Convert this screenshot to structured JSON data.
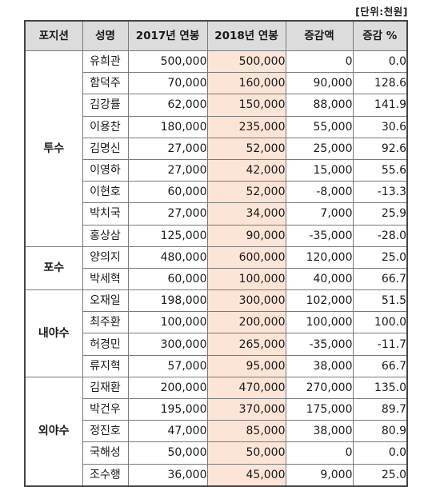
{
  "unit_label": "[단위:천원]",
  "headers": [
    "포지션",
    "성명",
    "2017년 연봉",
    "2018년 연봉",
    "증감액",
    "증감 %"
  ],
  "groups": [
    {
      "position": "투수",
      "rows": [
        {
          "name": "유희관",
          "y2017": "500,000",
          "y2018": "500,000",
          "diff": "0",
          "pct": "0.0"
        },
        {
          "name": "함덕주",
          "y2017": "70,000",
          "y2018": "160,000",
          "diff": "90,000",
          "pct": "128.6"
        },
        {
          "name": "김강률",
          "y2017": "62,000",
          "y2018": "150,000",
          "diff": "88,000",
          "pct": "141.9"
        },
        {
          "name": "이용찬",
          "y2017": "180,000",
          "y2018": "235,000",
          "diff": "55,000",
          "pct": "30.6"
        },
        {
          "name": "김명신",
          "y2017": "27,000",
          "y2018": "52,000",
          "diff": "25,000",
          "pct": "92.6"
        },
        {
          "name": "이영하",
          "y2017": "27,000",
          "y2018": "42,000",
          "diff": "15,000",
          "pct": "55.6"
        },
        {
          "name": "이현호",
          "y2017": "60,000",
          "y2018": "52,000",
          "diff": "-8,000",
          "pct": "-13.3"
        },
        {
          "name": "박치국",
          "y2017": "27,000",
          "y2018": "34,000",
          "diff": "7,000",
          "pct": "25.9"
        },
        {
          "name": "홍상삼",
          "y2017": "125,000",
          "y2018": "90,000",
          "diff": "-35,000",
          "pct": "-28.0"
        }
      ]
    },
    {
      "position": "포수",
      "rows": [
        {
          "name": "양의지",
          "y2017": "480,000",
          "y2018": "600,000",
          "diff": "120,000",
          "pct": "25.0"
        },
        {
          "name": "박세혁",
          "y2017": "60,000",
          "y2018": "100,000",
          "diff": "40,000",
          "pct": "66.7"
        }
      ]
    },
    {
      "position": "내야수",
      "rows": [
        {
          "name": "오재일",
          "y2017": "198,000",
          "y2018": "300,000",
          "diff": "102,000",
          "pct": "51.5"
        },
        {
          "name": "최주환",
          "y2017": "100,000",
          "y2018": "200,000",
          "diff": "100,000",
          "pct": "100.0"
        },
        {
          "name": "허경민",
          "y2017": "300,000",
          "y2018": "265,000",
          "diff": "-35,000",
          "pct": "-11.7"
        },
        {
          "name": "류지혁",
          "y2017": "57,000",
          "y2018": "95,000",
          "diff": "38,000",
          "pct": "66.7"
        }
      ]
    },
    {
      "position": "외야수",
      "rows": [
        {
          "name": "김재환",
          "y2017": "200,000",
          "y2018": "470,000",
          "diff": "270,000",
          "pct": "135.0"
        },
        {
          "name": "박건우",
          "y2017": "195,000",
          "y2018": "370,000",
          "diff": "175,000",
          "pct": "89.7"
        },
        {
          "name": "정진호",
          "y2017": "47,000",
          "y2018": "85,000",
          "diff": "38,000",
          "pct": "80.9"
        },
        {
          "name": "국해성",
          "y2017": "50,000",
          "y2018": "50,000",
          "diff": "0",
          "pct": "0.0"
        },
        {
          "name": "조수행",
          "y2017": "36,000",
          "y2018": "45,000",
          "diff": "9,000",
          "pct": "25.0"
        }
      ]
    }
  ],
  "colors": {
    "header_bg": "#dcdcdc",
    "highlight_2018": "#fce4d6",
    "border": "#7a7a7a"
  }
}
